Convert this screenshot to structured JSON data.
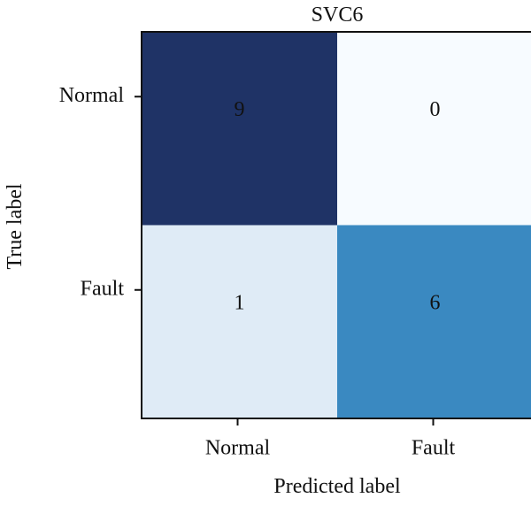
{
  "chart_data": {
    "type": "heatmap",
    "title": "SVC6",
    "xlabel": "Predicted label",
    "ylabel": "True label",
    "x_categories": [
      "Normal",
      "Fault"
    ],
    "y_categories": [
      "Normal",
      "Fault"
    ],
    "values": [
      [
        9,
        0
      ],
      [
        1,
        6
      ]
    ],
    "vmin": 0,
    "vmax": 9,
    "colormap": "Blues",
    "colors": {
      "9": "#1f3366",
      "6": "#3a89c1",
      "1": "#dfebf6",
      "0": "#f7fbff"
    }
  }
}
